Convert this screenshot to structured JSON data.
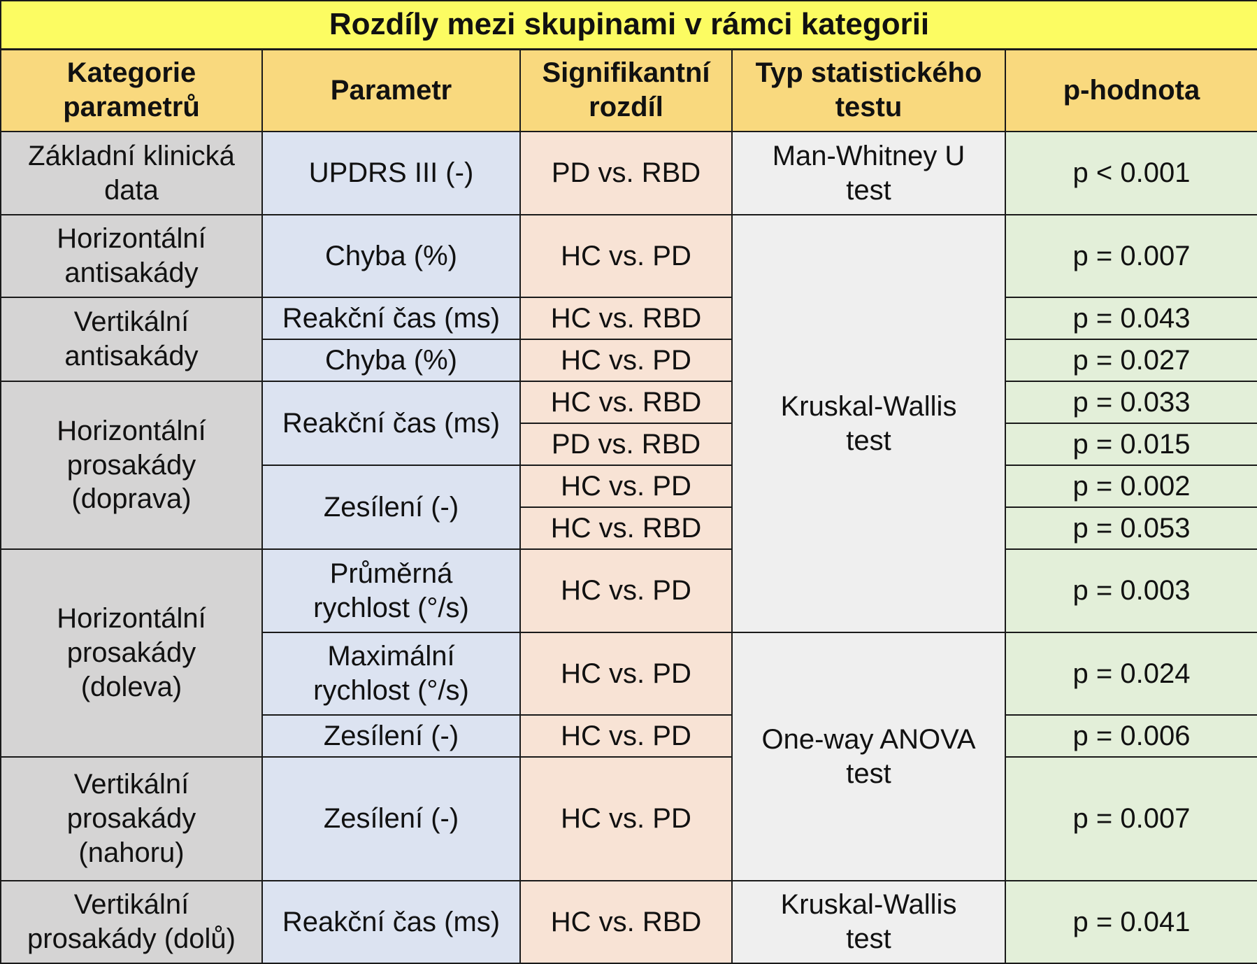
{
  "title": "Rozdíly mezi skupinami v rámci kategorii",
  "colors": {
    "title_bg": "#fcfc62",
    "header_bg": "#f9d97e",
    "category_bg": "#d5d4d4",
    "parameter_bg": "#dce3f1",
    "significance_bg": "#f8e3d5",
    "test_type_bg": "#efefef",
    "p_value_bg": "#e3efd9"
  },
  "headers": {
    "category": [
      "Kategorie",
      "parametrů"
    ],
    "parameter": "Parametr",
    "significance": [
      "Signifikantní",
      "rozdíl"
    ],
    "test_type": [
      "Typ statistického",
      "testu"
    ],
    "p_value": "p-hodnota"
  },
  "categories": [
    [
      "Základní klinická",
      "data"
    ],
    [
      "Horizontální",
      "antisakády"
    ],
    [
      "Vertikální",
      "antisakády"
    ],
    [
      "Horizontální",
      "prosakády",
      "(doprava)"
    ],
    [
      "Horizontální",
      "prosakády",
      "(doleva)"
    ],
    [
      "Vertikální",
      "prosakády",
      "(nahoru)"
    ],
    [
      "Vertikální",
      "prosakády (dolů)"
    ]
  ],
  "parameters": [
    [
      "UPDRS III (-)"
    ],
    [
      "Chyba (%)"
    ],
    [
      "Reakční čas (ms)"
    ],
    [
      "Chyba (%)"
    ],
    [
      "Reakční čas (ms)"
    ],
    [
      "Zesílení (-)"
    ],
    [
      "Průměrná",
      "rychlost (°/s)"
    ],
    [
      "Maximální",
      "rychlost (°/s)"
    ],
    [
      "Zesílení (-)"
    ],
    [
      "Zesílení (-)"
    ],
    [
      "Reakční čas (ms)"
    ]
  ],
  "significance": [
    "PD vs. RBD",
    "HC vs. PD",
    "HC vs. RBD",
    "HC vs. PD",
    "HC vs. RBD",
    "PD vs. RBD",
    "HC vs. PD",
    "HC vs. RBD",
    "HC vs. PD",
    "HC vs. PD",
    "HC vs. PD",
    "HC vs. PD",
    "HC vs. RBD"
  ],
  "test_types": [
    [
      "Man-Whitney U",
      "test"
    ],
    [
      "Kruskal-Wallis",
      "test"
    ],
    [
      "One-way ANOVA",
      "test"
    ],
    [
      "Kruskal-Wallis",
      "test"
    ]
  ],
  "p_values": [
    "p < 0.001",
    "p = 0.007",
    "p = 0.043",
    "p = 0.027",
    "p = 0.033",
    "p = 0.015",
    "p = 0.002",
    "p = 0.053",
    "p = 0.003",
    "p = 0.024",
    "p = 0.006",
    "p = 0.007",
    "p = 0.041"
  ]
}
